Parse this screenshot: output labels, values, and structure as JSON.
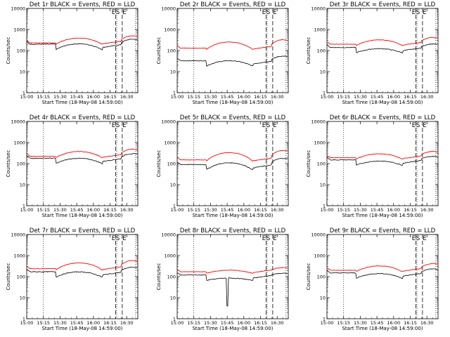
{
  "chart_data": {
    "type": "line",
    "layout": "3x3 panel grid",
    "x_tick_labels": [
      "15:00",
      "15:15",
      "15:30",
      "15:45",
      "16:00",
      "16:15",
      "16:30"
    ],
    "x_range_minutes_after_1500": [
      0,
      100
    ],
    "xlabel": "Start Time (18-May-08 14:59:00)",
    "ylabel": "Counts/sec",
    "yscale": "log",
    "ylim": [
      1,
      10000
    ],
    "y_tick_labels": [
      "1",
      "10",
      "100",
      "1000",
      "10000"
    ],
    "marker_labels": [
      "E",
      "S",
      "E"
    ],
    "colors": {
      "events": "#000000",
      "lld": "#ff0000"
    },
    "panels": [
      {
        "title": "Det 1r BLACK = Events, RED = LLD",
        "events_base": 200,
        "lld_base": 230,
        "lld_bump": 2.0,
        "ev_bump": 1.9,
        "dip": null
      },
      {
        "title": "Det 2r BLACK = Events, RED = LLD",
        "events_base": 33,
        "lld_base": 130,
        "lld_bump": 2.3,
        "ev_bump": 1.8,
        "dip": null
      },
      {
        "title": "Det 3r BLACK = Events, RED = LLD",
        "events_base": 140,
        "lld_base": 200,
        "lld_bump": 1.9,
        "ev_bump": 1.6,
        "dip": null
      },
      {
        "title": "Det 4r BLACK = Events, RED = LLD",
        "events_base": 180,
        "lld_base": 220,
        "lld_bump": 2.0,
        "ev_bump": 1.8,
        "dip": null
      },
      {
        "title": "Det 5r BLACK = Events, RED = LLD",
        "events_base": 90,
        "lld_base": 150,
        "lld_bump": 2.6,
        "ev_bump": 2.2,
        "dip": null
      },
      {
        "title": "Det 6r BLACK = Events, RED = LLD",
        "events_base": 150,
        "lld_base": 190,
        "lld_bump": 1.8,
        "ev_bump": 1.6,
        "dip": null
      },
      {
        "title": "Det 7r BLACK = Events, RED = LLD",
        "events_base": 170,
        "lld_base": 240,
        "lld_bump": 2.2,
        "ev_bump": 1.8,
        "dip": null
      },
      {
        "title": "Det 8r BLACK = Events, RED = LLD",
        "events_base": 120,
        "lld_base": 170,
        "lld_bump": 1.4,
        "ev_bump": 1.3,
        "dip": {
          "x": 45,
          "y": 4
        }
      },
      {
        "title": "Det 9r BLACK = Events, RED = LLD",
        "events_base": 150,
        "lld_base": 200,
        "lld_bump": 1.9,
        "ev_bump": 1.7,
        "dip": null
      }
    ]
  }
}
